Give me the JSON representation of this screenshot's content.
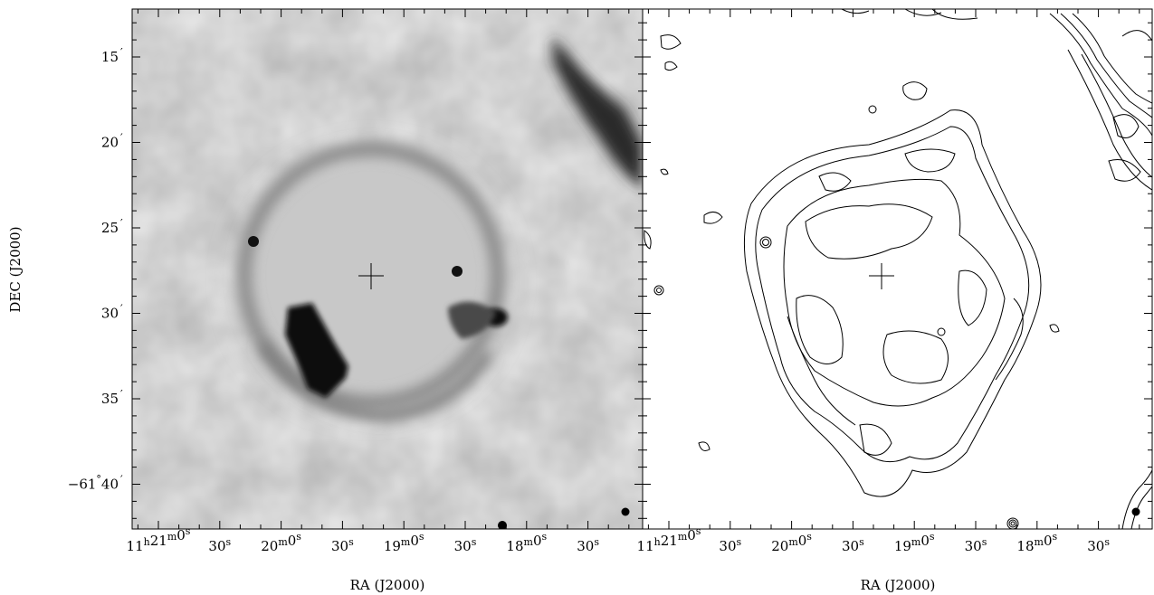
{
  "figure": {
    "left_panel": {
      "name": "greyscale-radio-image",
      "x_axis_label": "RA (J2000)",
      "y_axis_label": "DEC (J2000)",
      "ra_ticks": [
        {
          "h": "11",
          "m": "21",
          "s": "0"
        },
        {
          "s": "30"
        },
        {
          "m": "20",
          "s": "0"
        },
        {
          "s": "30"
        },
        {
          "m": "19",
          "s": "0"
        },
        {
          "s": "30"
        },
        {
          "m": "18",
          "s": "0"
        },
        {
          "s": "30"
        }
      ],
      "dec_ticks": [
        {
          "label": "15"
        },
        {
          "label": "20"
        },
        {
          "label": "25"
        },
        {
          "label": "30"
        },
        {
          "label": "35"
        },
        {
          "label": "−61",
          "deg": true,
          "minute": "40"
        }
      ]
    },
    "right_panel": {
      "name": "contour-map",
      "x_axis_label": "RA (J2000)",
      "ra_ticks": [
        {
          "h": "11",
          "m": "21",
          "s": "0"
        },
        {
          "s": "30"
        },
        {
          "m": "20",
          "s": "0"
        },
        {
          "s": "30"
        },
        {
          "m": "19",
          "s": "0"
        },
        {
          "s": "30"
        },
        {
          "m": "18",
          "s": "0"
        },
        {
          "s": "30"
        }
      ]
    },
    "colors": {
      "background": "#ffffff",
      "ink": "#000000",
      "grey_field": "#e6e6e6",
      "shell": "#8e8e8e",
      "dark_emission": "#0c0c0c"
    }
  }
}
